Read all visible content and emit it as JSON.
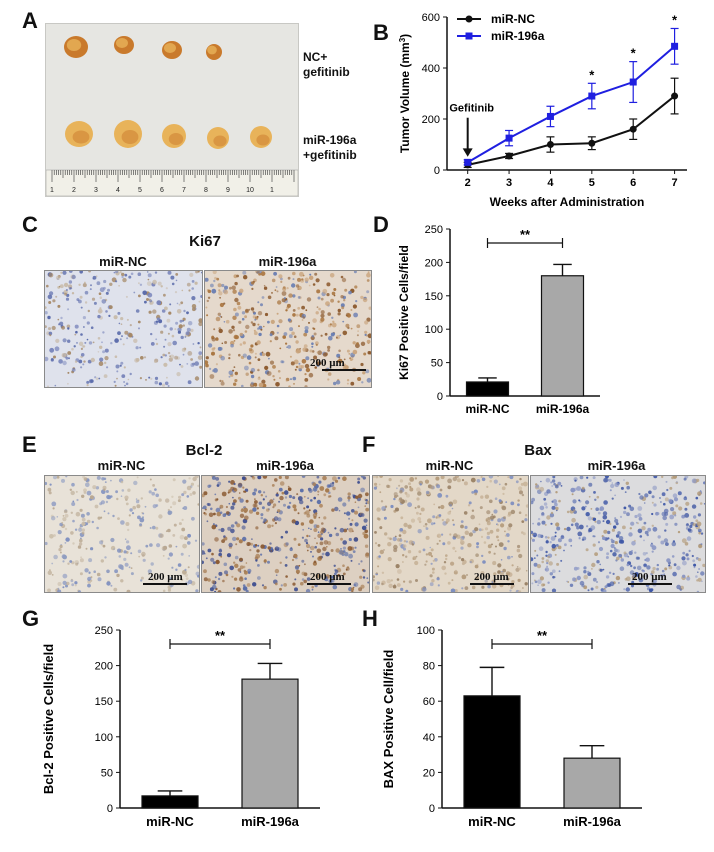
{
  "panels": {
    "A": {
      "letter": "A",
      "group1_label_line1": "NC+",
      "group1_label_line2": "gefitinib",
      "group2_label_line1": "miR-196a",
      "group2_label_line2": "+gefitinib",
      "ruler_ticks": [
        "1",
        "2",
        "3",
        "4",
        "5",
        "6",
        "7",
        "8",
        "9",
        "10",
        "1"
      ],
      "colors": {
        "tumor": "#e8b35a",
        "tumor_dark": "#c97a2c",
        "background": "#e6e6e2",
        "ruler": "#f1f0e8"
      }
    },
    "B": {
      "letter": "B"
    },
    "C": {
      "letter": "C",
      "title": "Ki67",
      "left_label": "miR-NC",
      "right_label": "miR-196a",
      "scale_bar": "200 μm"
    },
    "D": {
      "letter": "D"
    },
    "E": {
      "letter": "E",
      "title": "Bcl-2",
      "left_label": "miR-NC",
      "right_label": "miR-196a",
      "scale_bar": "200 μm"
    },
    "F": {
      "letter": "F",
      "title": "Bax",
      "left_label": "miR-NC",
      "right_label": "miR-196a",
      "scale_bar": "200 μm"
    },
    "G": {
      "letter": "G"
    },
    "H": {
      "letter": "H"
    }
  },
  "chart_data": [
    {
      "id": "B",
      "type": "line",
      "x": [
        2,
        3,
        4,
        5,
        6,
        7
      ],
      "xlabel": "Weeks after Administration",
      "ylabel": "Tumor Volume (mm",
      "ylabel_sup": "3",
      "ylabel_end": ")",
      "ylim": [
        0,
        600
      ],
      "yticks": [
        0,
        200,
        400,
        600
      ],
      "annotation": {
        "text": "Gefitinib",
        "x": 2
      },
      "significance": [
        {
          "x": 5,
          "text": "*"
        },
        {
          "x": 6,
          "text": "*"
        },
        {
          "x": 7,
          "text": "*"
        }
      ],
      "legend": "top-left",
      "series": [
        {
          "name": "miR-NC",
          "color": "#111111",
          "marker": "circle",
          "values": [
            20,
            55,
            100,
            105,
            160,
            290
          ],
          "errors": [
            10,
            10,
            30,
            25,
            40,
            70
          ]
        },
        {
          "name": "miR-196a",
          "color": "#1f1fe0",
          "marker": "square",
          "values": [
            30,
            125,
            210,
            290,
            345,
            485
          ],
          "errors": [
            10,
            30,
            40,
            50,
            80,
            70
          ]
        }
      ]
    },
    {
      "id": "D",
      "type": "bar",
      "categories": [
        "miR-NC",
        "miR-196a"
      ],
      "values": [
        21,
        180
      ],
      "errors": [
        6,
        17
      ],
      "colors": [
        "#000000",
        "#a8a8a8"
      ],
      "ylabel": "Ki67 Positive Cells/field",
      "ylim": [
        0,
        250
      ],
      "yticks": [
        0,
        50,
        100,
        150,
        200,
        250
      ],
      "significance": "**"
    },
    {
      "id": "G",
      "type": "bar",
      "categories": [
        "miR-NC",
        "miR-196a"
      ],
      "values": [
        17,
        181
      ],
      "errors": [
        7,
        22
      ],
      "colors": [
        "#000000",
        "#a8a8a8"
      ],
      "ylabel": "Bcl-2 Positive Cells/field",
      "ylim": [
        0,
        250
      ],
      "yticks": [
        0,
        50,
        100,
        150,
        200,
        250
      ],
      "significance": "**"
    },
    {
      "id": "H",
      "type": "bar",
      "categories": [
        "miR-NC",
        "miR-196a"
      ],
      "values": [
        63,
        28
      ],
      "errors": [
        16,
        7
      ],
      "colors": [
        "#000000",
        "#a8a8a8"
      ],
      "ylabel": "BAX Positive Cell/field",
      "ylim": [
        0,
        100
      ],
      "yticks": [
        0,
        20,
        40,
        60,
        80,
        100
      ],
      "significance": "**"
    }
  ]
}
